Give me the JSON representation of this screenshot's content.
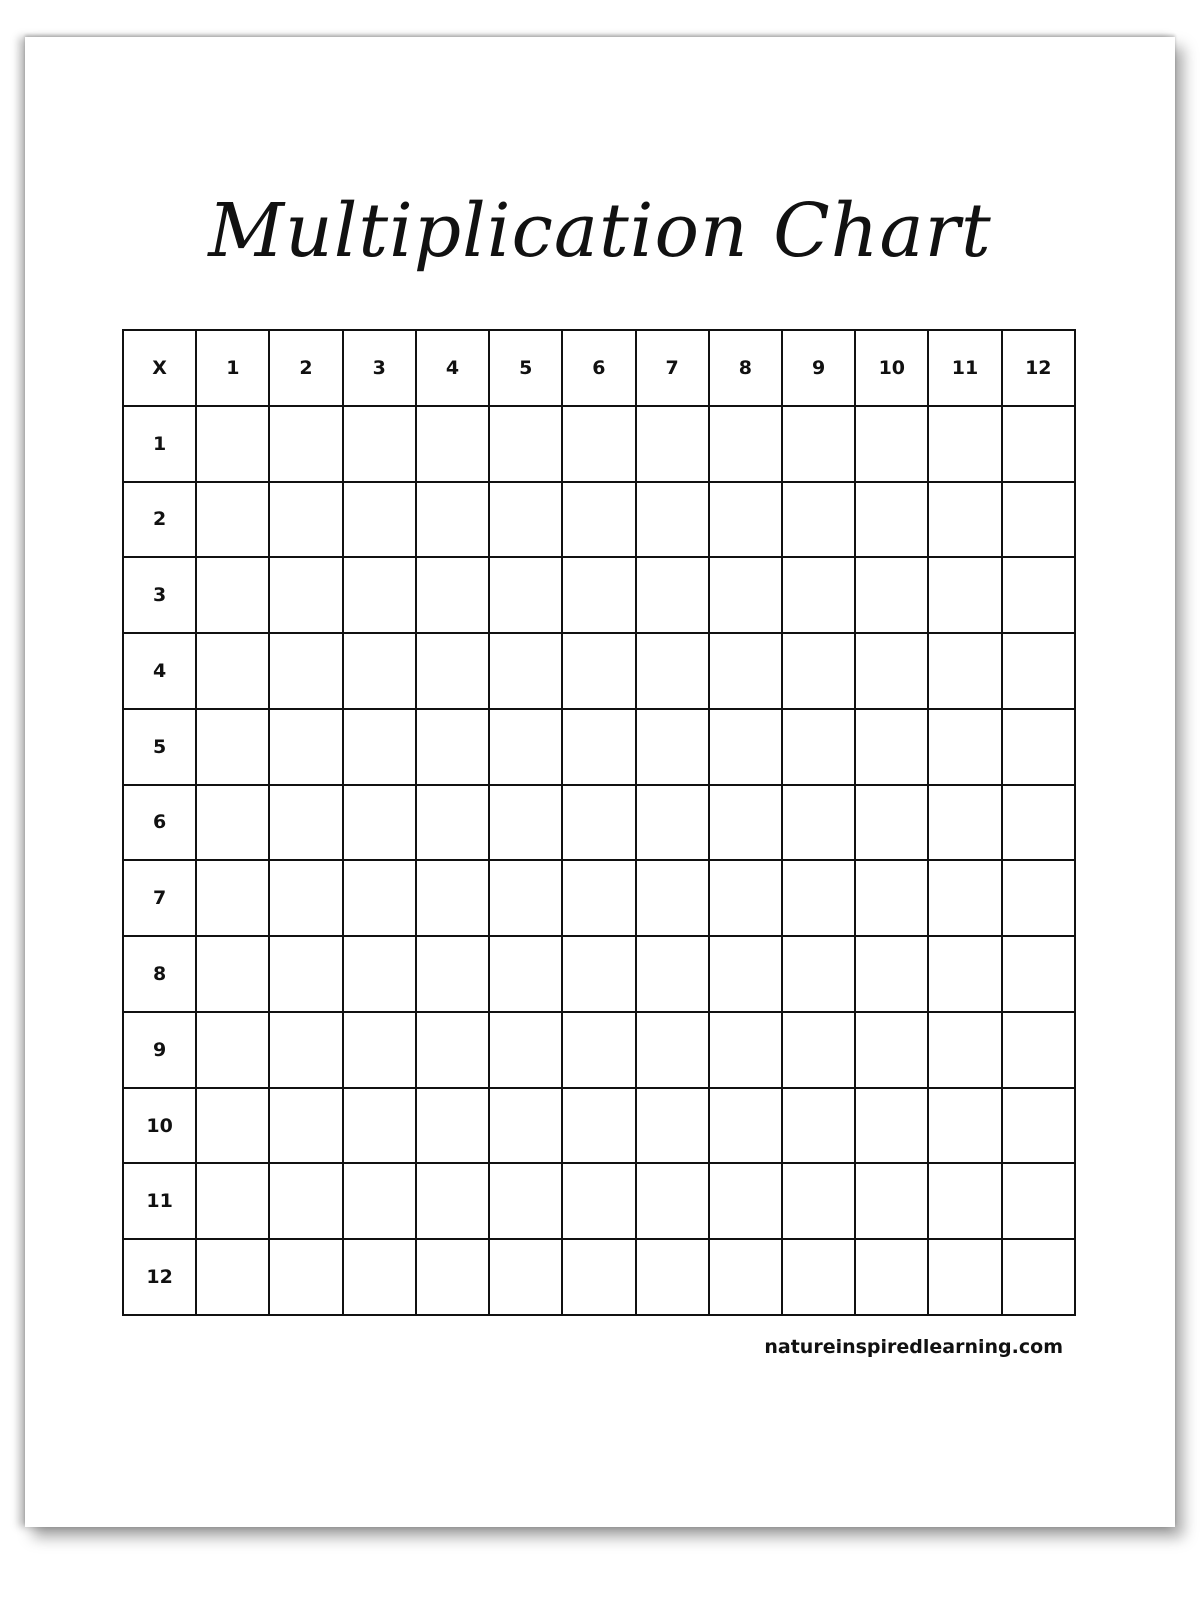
{
  "title": "Multiplication Chart",
  "table": {
    "corner": "X",
    "columns": [
      "1",
      "2",
      "3",
      "4",
      "5",
      "6",
      "7",
      "8",
      "9",
      "10",
      "11",
      "12"
    ],
    "rows": [
      "1",
      "2",
      "3",
      "4",
      "5",
      "6",
      "7",
      "8",
      "9",
      "10",
      "11",
      "12"
    ]
  },
  "footer": "natureinspiredlearning.com"
}
